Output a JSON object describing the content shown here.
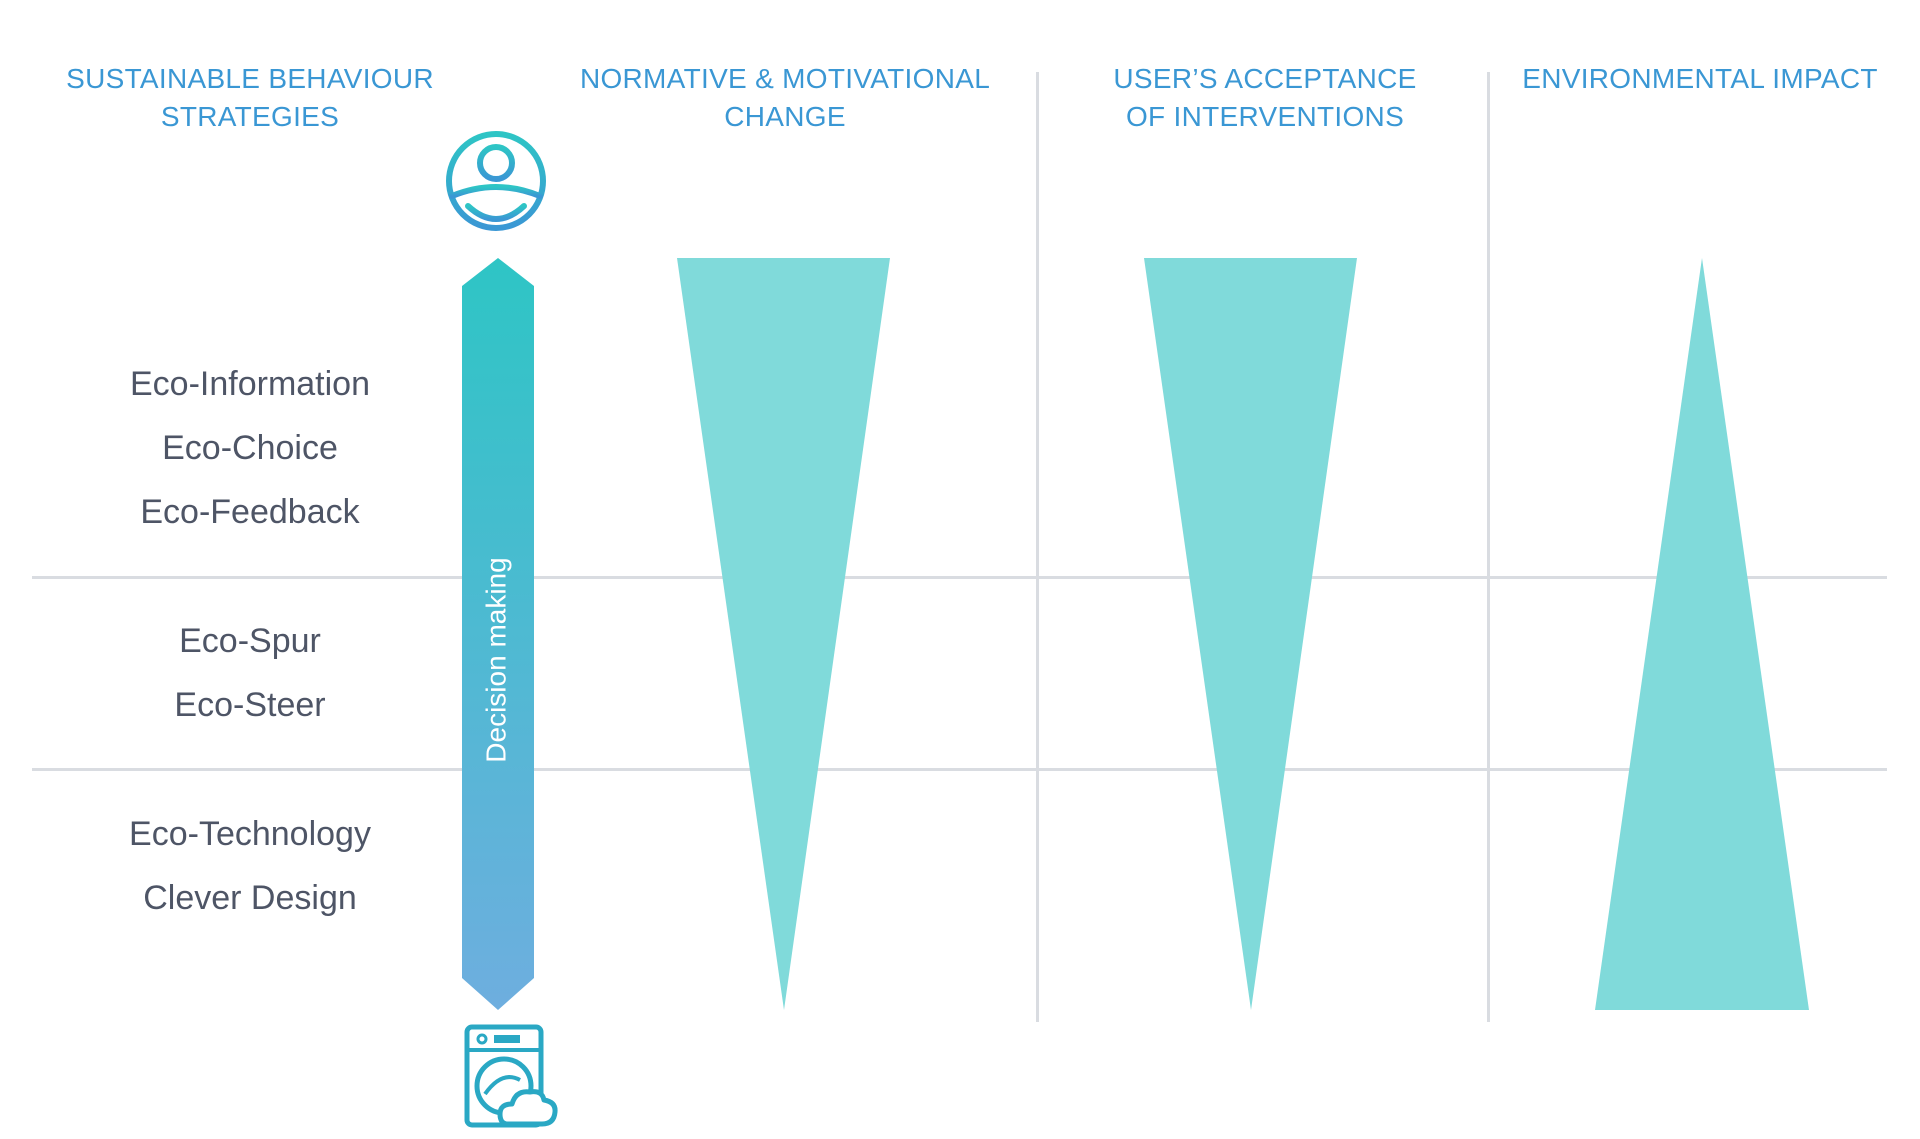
{
  "headers": {
    "col1": [
      "SUSTAINABLE BEHAVIOUR",
      "STRATEGIES"
    ],
    "col2": [
      "NORMATIVE & MOTIVATIONAL",
      "CHANGE"
    ],
    "col3": [
      "USER’S ACCEPTANCE",
      "OF INTERVENTIONS"
    ],
    "col4": [
      "ENVIRONMENTAL IMPACT"
    ]
  },
  "strategies": {
    "group1": [
      "Eco-Information",
      "Eco-Choice",
      "Eco-Feedback"
    ],
    "group2": [
      "Eco-Spur",
      "Eco-Steer"
    ],
    "group3": [
      "Eco-Technology",
      "Clever Design"
    ]
  },
  "arrow": {
    "label": "Decision making",
    "top_icon": "user-icon",
    "bottom_icon": "washing-machine-cloud-icon"
  },
  "colors": {
    "header": "#3a97d4",
    "strategy_text": "#4e5566",
    "wedge": "#80dada",
    "arrow_top": "#2ec5c5",
    "arrow_bottom": "#6eaedf",
    "grid": "#d9dce1"
  }
}
